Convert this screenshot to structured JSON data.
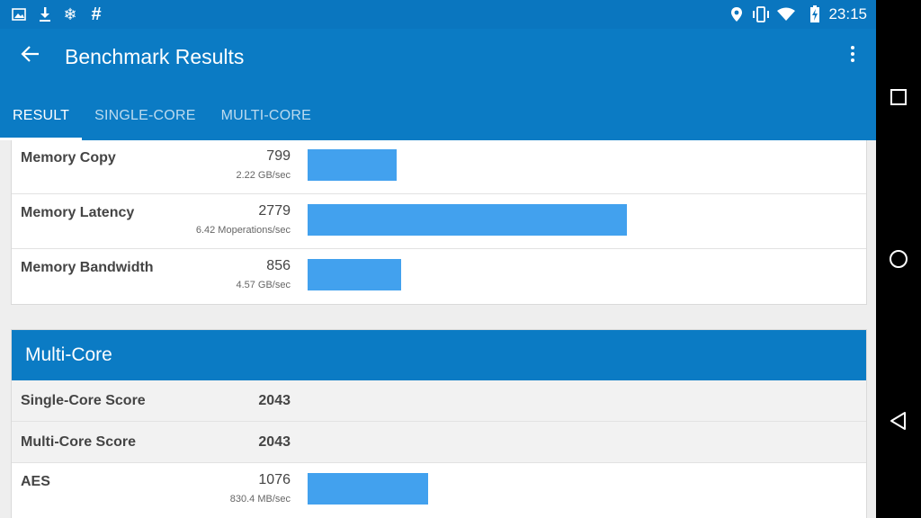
{
  "status_bar": {
    "icons_left": [
      "image-icon",
      "download-icon",
      "snowflake-icon",
      "hash-icon"
    ],
    "icons_right": [
      "location-icon",
      "vibrate-icon",
      "wifi-icon",
      "battery-charging-icon"
    ],
    "time": "23:15"
  },
  "app_bar": {
    "title": "Benchmark Results",
    "tabs": [
      {
        "label": "RESULT",
        "active": true
      },
      {
        "label": "SINGLE-CORE",
        "active": false
      },
      {
        "label": "MULTI-CORE",
        "active": false
      }
    ]
  },
  "memory_rows": [
    {
      "name": "Memory Copy",
      "score": "799",
      "rate": "2.22 GB/sec",
      "bar_fraction": 0.278
    },
    {
      "name": "Memory Latency",
      "score": "2779",
      "rate": "6.42 Moperations/sec",
      "bar_fraction": 1.0
    },
    {
      "name": "Memory Bandwidth",
      "score": "856",
      "rate": "4.57 GB/sec",
      "bar_fraction": 0.294
    }
  ],
  "multi_core": {
    "header": "Multi-Core",
    "single_core_score_label": "Single-Core Score",
    "single_core_score": "2043",
    "multi_core_score_label": "Multi-Core Score",
    "multi_core_score": "2043",
    "rows": [
      {
        "name": "AES",
        "score": "1076",
        "rate": "830.4 MB/sec",
        "bar_fraction": 0.378
      }
    ]
  },
  "colors": {
    "status_bar": "#0a76bf",
    "app_bar": "#0b7bc4",
    "bar": "#42a1ee"
  },
  "nav_bar": {
    "buttons": [
      "recents-icon",
      "home-icon",
      "back-triangle-icon"
    ]
  }
}
